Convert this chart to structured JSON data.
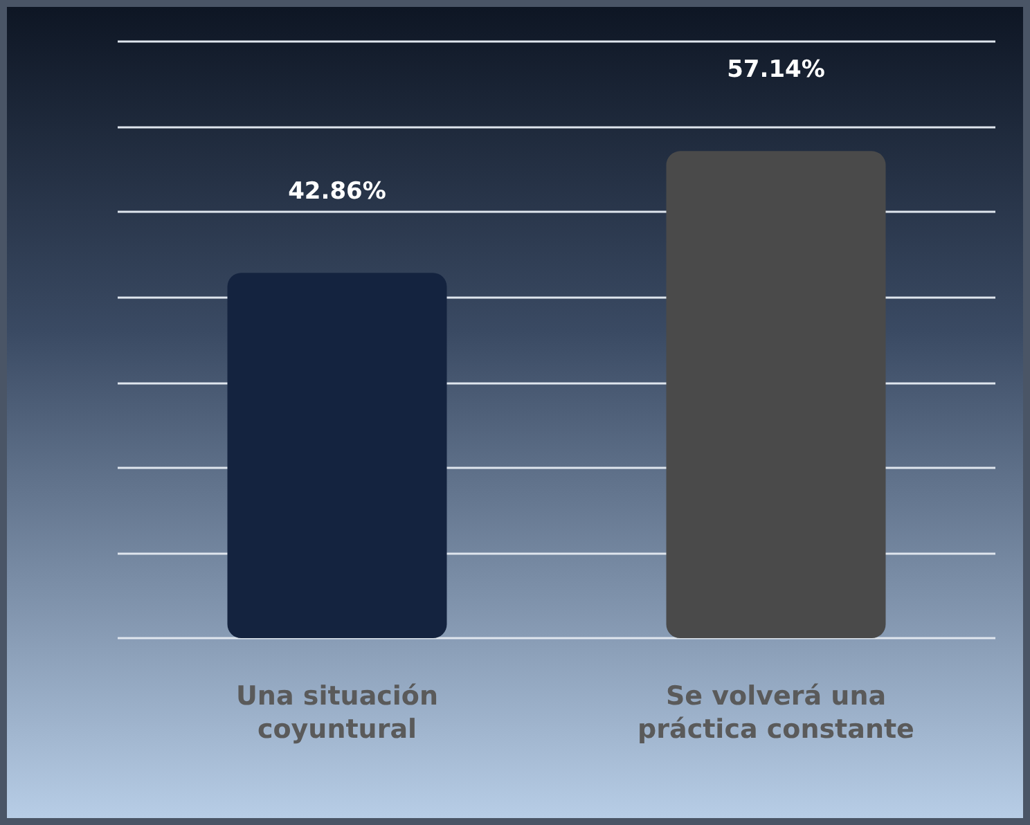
{
  "chart_data": {
    "type": "bar",
    "categories": [
      "Una situación coyuntural",
      "Se volverá una práctica constante"
    ],
    "values": [
      42.86,
      57.14
    ],
    "colors": [
      "#14233f",
      "#4a4a4a"
    ],
    "value_labels": [
      "42.86%",
      "57.14%"
    ],
    "ylim": [
      0,
      70
    ],
    "yticks": [
      {
        "value": 0,
        "label": null
      },
      {
        "value": 10,
        "label": null
      },
      {
        "value": 20,
        "label": null
      },
      {
        "value": 30,
        "label": null
      },
      {
        "value": 40,
        "label": null
      },
      {
        "value": 50,
        "label": null
      },
      {
        "value": 60,
        "label": null
      },
      {
        "value": 70,
        "label": null
      }
    ],
    "tick_labels": "x",
    "grid": "y"
  }
}
